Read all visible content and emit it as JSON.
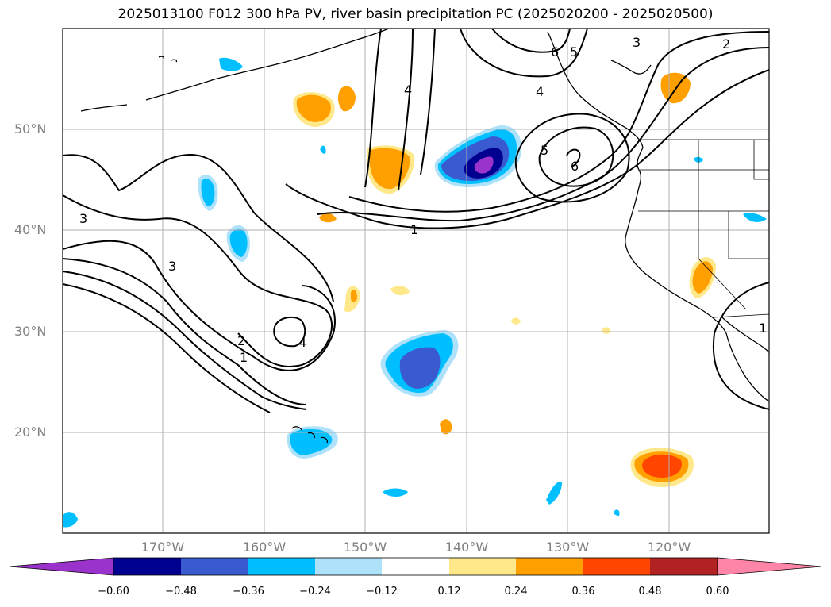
{
  "title": "2025013100 F012 300 hPa PV, river basin precipitation PC (2025020200 - 2025020500)",
  "lat_labels": [
    "50°N",
    "40°N",
    "30°N",
    "20°N"
  ],
  "lon_labels": [
    "170°W",
    "160°W",
    "150°W",
    "140°W",
    "130°W",
    "120°W"
  ],
  "contour_labels": [
    "1",
    "2",
    "3",
    "4",
    "5",
    "6",
    "1",
    "2",
    "3",
    "4",
    "3",
    "4",
    "5",
    "6",
    "1"
  ],
  "colorbar": {
    "ticks": [
      "−0.60",
      "−0.48",
      "−0.36",
      "−0.24",
      "−0.12",
      "0.12",
      "0.24",
      "0.36",
      "0.48",
      "0.60"
    ],
    "colors": [
      "#9933cc",
      "#000090",
      "#3a5bd0",
      "#00bfff",
      "#aee1fa",
      "#ffffff",
      "#ffe88a",
      "#ffa000",
      "#ff4500",
      "#b22222",
      "#ff85a8"
    ]
  },
  "colors": {
    "coast": "#000000",
    "grid": "#b0b0b0",
    "contour": "#000000"
  }
}
